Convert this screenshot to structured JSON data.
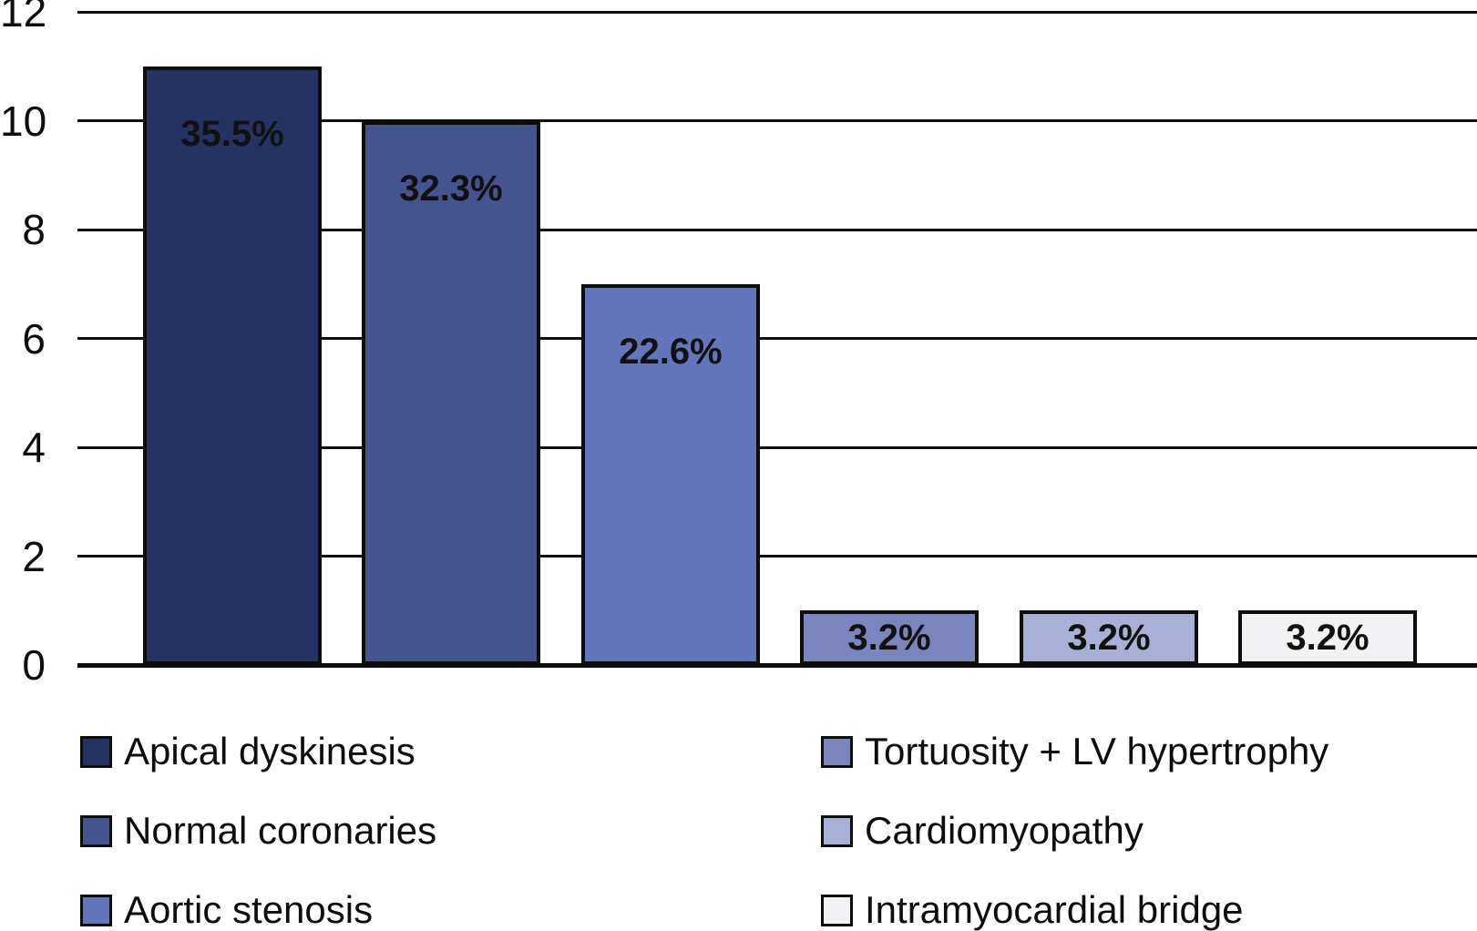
{
  "chart_data": {
    "type": "bar",
    "title": "",
    "xlabel": "",
    "ylabel": "",
    "ylim": [
      0,
      12
    ],
    "yticks": [
      0,
      2,
      4,
      6,
      8,
      10,
      12
    ],
    "grid": true,
    "background_color": "#ffffff",
    "grid_color": "#0d0d0d",
    "categories": [
      "Apical dyskinesis",
      "Normal coronaries",
      "Aortic stenosis",
      "Tortuosity + LV hypertrophy",
      "Cardiomyopathy",
      "Intramyocardial bridge"
    ],
    "values": [
      11,
      10,
      7,
      1,
      1,
      1
    ],
    "bar_labels": [
      "35.5%",
      "32.3%",
      "22.6%",
      "3.2%",
      "3.2%",
      "3.2%"
    ],
    "colors": [
      "#253264",
      "#44548f",
      "#6376bb",
      "#7a84bd",
      "#a8b0d6",
      "#f2f2f5"
    ],
    "legend_position": "bottom",
    "legend": [
      {
        "label": "Apical dyskinesis",
        "color": "#253264"
      },
      {
        "label": "Normal coronaries",
        "color": "#44548f"
      },
      {
        "label": "Aortic stenosis",
        "color": "#6376bb"
      },
      {
        "label": "Tortuosity + LV hypertrophy",
        "color": "#7a84bd"
      },
      {
        "label": "Cardiomyopathy",
        "color": "#a8b0d6"
      },
      {
        "label": "Intramyocardial bridge",
        "color": "#f2f2f5"
      }
    ]
  }
}
